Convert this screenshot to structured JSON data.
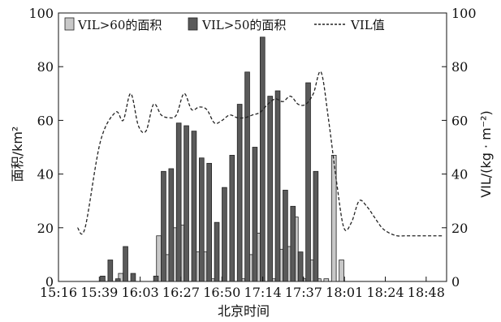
{
  "chart_data": {
    "type": "bar",
    "title": "",
    "xlabel": "北京时间",
    "ylabel": "面积/km²",
    "y2label": "VIL/(kg · m⁻²)",
    "ylim": [
      0,
      100
    ],
    "y2lim": [
      0,
      100
    ],
    "yticks": [
      "0",
      "20",
      "40",
      "60",
      "80",
      "100"
    ],
    "y2ticks": [
      "0",
      "20",
      "40",
      "60",
      "80",
      "100"
    ],
    "xticks": [
      "15:16",
      "15:39",
      "16:03",
      "16:27",
      "16:50",
      "17:14",
      "17:37",
      "18:01",
      "18:24",
      "18:48"
    ],
    "legend": {
      "placement": "top",
      "entries": [
        "VIL>60的面积",
        "VIL>50的面积",
        "VIL值"
      ]
    },
    "x_count": 51,
    "series": [
      {
        "name": "VIL>60的面积",
        "kind": "bar",
        "color": "#c8c8c8",
        "values": [
          0,
          0,
          0,
          0,
          0,
          0,
          0,
          0,
          3,
          0,
          0,
          0,
          0,
          17,
          10,
          20,
          21,
          0,
          11,
          11,
          1,
          0,
          0,
          0,
          1,
          10,
          18,
          0,
          1,
          12,
          13,
          24,
          1,
          8,
          1,
          1,
          47,
          8,
          0,
          0,
          0,
          0,
          0,
          0,
          0,
          0,
          0,
          0,
          0,
          0,
          0
        ]
      },
      {
        "name": "VIL>50的面积",
        "kind": "bar",
        "color": "#5a5a5a",
        "values": [
          0,
          0,
          0,
          0,
          0,
          2,
          8,
          1,
          13,
          3,
          0,
          0,
          2,
          41,
          42,
          59,
          58,
          56,
          46,
          44,
          22,
          35,
          47,
          66,
          78,
          50,
          91,
          69,
          71,
          34,
          28,
          11,
          74,
          41,
          0,
          0,
          0,
          0,
          0,
          0,
          0,
          0,
          0,
          0,
          0,
          0,
          0,
          0,
          0,
          0,
          0
        ]
      },
      {
        "name": "VIL值",
        "kind": "line",
        "color": "#222222",
        "x": [
          2,
          3,
          5,
          7,
          8,
          9,
          10,
          11,
          12,
          13,
          14,
          15,
          16,
          17,
          18,
          19,
          20,
          21,
          22,
          23,
          24,
          25,
          26,
          27,
          28,
          29,
          30,
          31,
          32,
          33,
          34,
          35,
          36,
          37,
          38,
          39,
          40,
          41,
          42,
          43,
          44,
          45,
          46,
          47,
          48,
          49,
          50
        ],
        "values": [
          20,
          20,
          52,
          63,
          60,
          70,
          58,
          56,
          66,
          62,
          61,
          62,
          70,
          64,
          65,
          64,
          59,
          60,
          62,
          61,
          61,
          62,
          63,
          66,
          68,
          67,
          69,
          66,
          66,
          70,
          78,
          60,
          38,
          20,
          22,
          30,
          28,
          24,
          20,
          18,
          17,
          17,
          17,
          17,
          17,
          17,
          17
        ]
      }
    ]
  }
}
